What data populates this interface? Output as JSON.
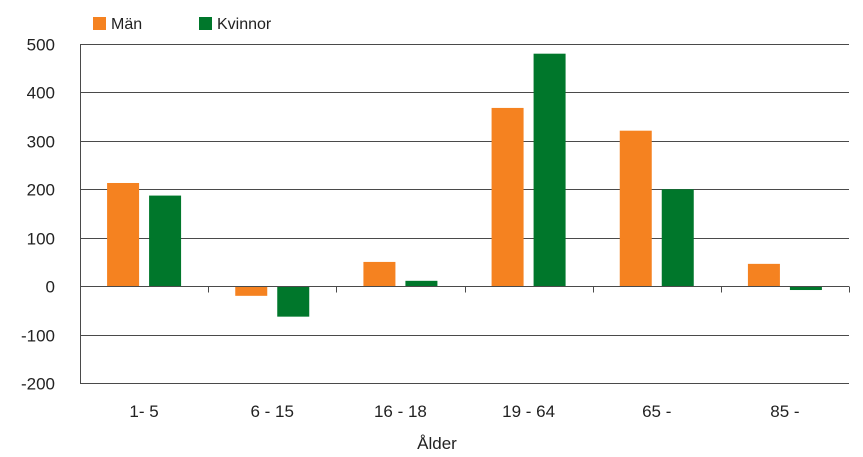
{
  "chart_data": {
    "type": "bar",
    "xlabel": "Ålder",
    "ylabel": "",
    "ylim": [
      -200,
      500
    ],
    "yticks": [
      500,
      400,
      300,
      200,
      100,
      0,
      -100,
      -200
    ],
    "grid": true,
    "legend": "top-left",
    "categories": [
      "1- 5",
      "6 - 15",
      "16 - 18",
      "19 - 64",
      "65 -",
      "85 -"
    ],
    "series": [
      {
        "name": "Män",
        "color": "#F58220",
        "values": [
          213,
          -20,
          50,
          368,
          321,
          46
        ]
      },
      {
        "name": "Kvinnor",
        "color": "#00772B",
        "values": [
          187,
          -63,
          11,
          480,
          200,
          -8
        ]
      }
    ]
  }
}
